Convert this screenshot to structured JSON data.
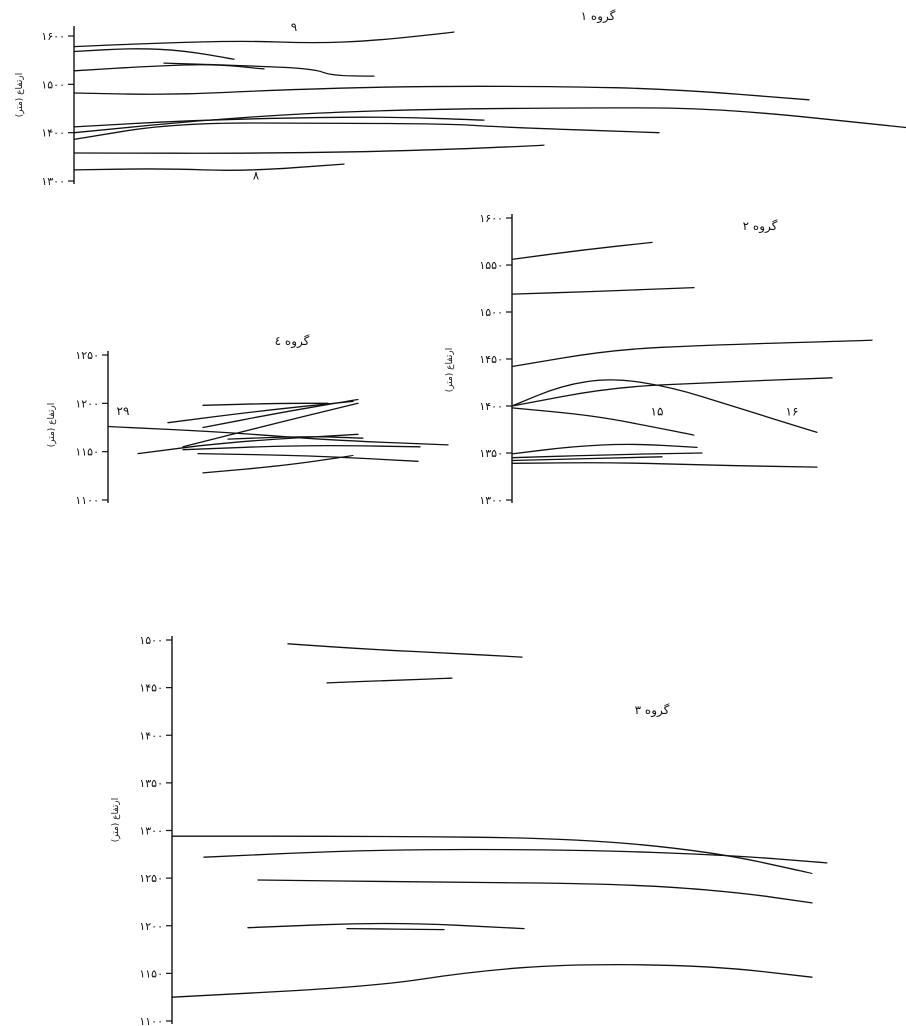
{
  "charts": [
    {
      "type": "line",
      "title": "گروه ۱",
      "ylabel": "ارتفاع (متر)",
      "ylim": [
        1300,
        1650
      ],
      "yticks": [
        {
          "v": 1300,
          "t": "۱۳۰۰"
        },
        {
          "v": 1400,
          "t": "۱۴۰۰"
        },
        {
          "v": 1500,
          "t": "۱۵۰۰"
        },
        {
          "v": 1600,
          "t": "۱۶۰۰"
        }
      ],
      "xlim": [
        0,
        835
      ],
      "series": [
        {
          "points": [
            [
              0,
              1578
            ],
            [
              80,
              1585
            ],
            [
              170,
              1590
            ],
            [
              240,
              1585
            ],
            [
              300,
              1590
            ],
            [
              380,
              1608
            ]
          ]
        },
        {
          "points": [
            [
              0,
              1568
            ],
            [
              60,
              1575
            ],
            [
              110,
              1570
            ],
            [
              160,
              1552
            ]
          ]
        },
        {
          "points": [
            [
              0,
              1528
            ],
            [
              80,
              1538
            ],
            [
              140,
              1542
            ],
            [
              190,
              1532
            ]
          ]
        },
        {
          "points": [
            [
              90,
              1544
            ],
            [
              180,
              1538
            ],
            [
              240,
              1532
            ],
            [
              258,
              1518
            ],
            [
              300,
              1517
            ]
          ]
        },
        {
          "points": [
            [
              0,
              1482
            ],
            [
              100,
              1478
            ],
            [
              200,
              1488
            ],
            [
              330,
              1496
            ],
            [
              480,
              1496
            ],
            [
              600,
              1490
            ],
            [
              735,
              1468
            ]
          ]
        },
        {
          "points": [
            [
              0,
              1400
            ],
            [
              150,
              1430
            ],
            [
              300,
              1447
            ],
            [
              520,
              1452
            ],
            [
              650,
              1450
            ],
            [
              835,
              1410
            ]
          ]
        },
        {
          "points": [
            [
              0,
              1412
            ],
            [
              120,
              1426
            ],
            [
              250,
              1432
            ],
            [
              330,
              1432
            ],
            [
              410,
              1426
            ]
          ]
        },
        {
          "points": [
            [
              0,
              1386
            ],
            [
              100,
              1420
            ],
            [
              250,
              1420
            ],
            [
              380,
              1418
            ],
            [
              420,
              1412
            ],
            [
              585,
              1400
            ]
          ]
        },
        {
          "points": [
            [
              0,
              1358
            ],
            [
              200,
              1357
            ],
            [
              360,
              1364
            ],
            [
              470,
              1374
            ]
          ]
        },
        {
          "points": [
            [
              0,
              1323
            ],
            [
              90,
              1326
            ],
            [
              170,
              1320
            ],
            [
              270,
              1335
            ]
          ]
        }
      ],
      "annotations": [
        {
          "text": "۹",
          "x": 220,
          "y": 1610
        },
        {
          "text": "۸",
          "x": 182,
          "y": 1303
        }
      ]
    },
    {
      "type": "line",
      "title": "گروه ۲",
      "ylabel": "ارتفاع (متر)",
      "ylim": [
        1300,
        1600
      ],
      "yticks": [
        {
          "v": 1300,
          "t": "۱۳۰۰"
        },
        {
          "v": 1350,
          "t": "۱۳۵۰"
        },
        {
          "v": 1400,
          "t": "۱۴۰۰"
        },
        {
          "v": 1450,
          "t": "۱۴۵۰"
        },
        {
          "v": 1500,
          "t": "۱۵۰۰"
        },
        {
          "v": 1550,
          "t": "۱۵۵۰"
        },
        {
          "v": 1600,
          "t": "۱۶۰۰"
        }
      ],
      "xlim": [
        0,
        360
      ],
      "series": [
        {
          "points": [
            [
              0,
              1556
            ],
            [
              70,
              1566
            ],
            [
              140,
              1574
            ]
          ]
        },
        {
          "points": [
            [
              0,
              1519
            ],
            [
              90,
              1522
            ],
            [
              182,
              1526
            ]
          ]
        },
        {
          "points": [
            [
              0,
              1442
            ],
            [
              100,
              1460
            ],
            [
              200,
              1465
            ],
            [
              360,
              1470
            ]
          ]
        },
        {
          "points": [
            [
              0,
              1400
            ],
            [
              100,
              1420
            ],
            [
              200,
              1425
            ],
            [
              320,
              1430
            ]
          ]
        },
        {
          "points": [
            [
              0,
              1400
            ],
            [
              50,
              1422
            ],
            [
              100,
              1430
            ],
            [
              160,
              1420
            ],
            [
              220,
              1400
            ],
            [
              305,
              1372
            ]
          ]
        },
        {
          "points": [
            [
              0,
              1398
            ],
            [
              80,
              1390
            ],
            [
              140,
              1378
            ],
            [
              182,
              1369
            ]
          ]
        },
        {
          "points": [
            [
              0,
              1349
            ],
            [
              60,
              1357
            ],
            [
              120,
              1360
            ],
            [
              185,
              1356
            ]
          ]
        },
        {
          "points": [
            [
              0,
              1345
            ],
            [
              90,
              1348
            ],
            [
              190,
              1350
            ]
          ]
        },
        {
          "points": [
            [
              0,
              1342
            ],
            [
              150,
              1346
            ]
          ]
        },
        {
          "points": [
            [
              0,
              1339
            ],
            [
              100,
              1340
            ],
            [
              200,
              1337
            ],
            [
              305,
              1335
            ]
          ]
        }
      ],
      "annotations": [
        {
          "text": "۱۵",
          "x": 145,
          "y": 1390
        },
        {
          "text": "۱۶",
          "x": 280,
          "y": 1390
        }
      ]
    },
    {
      "type": "line",
      "title": "گروه ۳",
      "ylabel": "ارتفاع (متر)",
      "ylim": [
        1100,
        1500
      ],
      "yticks": [
        {
          "v": 1100,
          "t": "۱۱۰۰"
        },
        {
          "v": 1150,
          "t": "۱۱۵۰"
        },
        {
          "v": 1200,
          "t": "۱۲۰۰"
        },
        {
          "v": 1250,
          "t": "۱۲۵۰"
        },
        {
          "v": 1300,
          "t": "۱۳۰۰"
        },
        {
          "v": 1350,
          "t": "۱۳۵۰"
        },
        {
          "v": 1400,
          "t": "۱۴۰۰"
        },
        {
          "v": 1450,
          "t": "۱۴۵۰"
        },
        {
          "v": 1500,
          "t": "۱۵۰۰"
        }
      ],
      "xlim": [
        0,
        660
      ],
      "series": [
        {
          "points": [
            [
              116,
              1496
            ],
            [
              200,
              1490
            ],
            [
              280,
              1486
            ],
            [
              350,
              1482
            ]
          ]
        },
        {
          "points": [
            [
              155,
              1455
            ],
            [
              230,
              1458
            ],
            [
              280,
              1460
            ]
          ]
        },
        {
          "points": [
            [
              0,
              1294
            ],
            [
              200,
              1294
            ],
            [
              400,
              1292
            ],
            [
              540,
              1278
            ],
            [
              640,
              1255
            ]
          ]
        },
        {
          "points": [
            [
              32,
              1272
            ],
            [
              200,
              1280
            ],
            [
              400,
              1280
            ],
            [
              560,
              1274
            ],
            [
              655,
              1266
            ]
          ]
        },
        {
          "points": [
            [
              86,
              1248
            ],
            [
              250,
              1246
            ],
            [
              450,
              1244
            ],
            [
              560,
              1236
            ],
            [
              640,
              1224
            ]
          ]
        },
        {
          "points": [
            [
              76,
              1198
            ],
            [
              220,
              1204
            ],
            [
              352,
              1197
            ]
          ]
        },
        {
          "points": [
            [
              175,
              1197
            ],
            [
              272,
              1196
            ]
          ]
        },
        {
          "points": [
            [
              0,
              1125
            ],
            [
              200,
              1136
            ],
            [
              300,
              1152
            ],
            [
              400,
              1160
            ],
            [
              540,
              1158
            ],
            [
              640,
              1146
            ]
          ]
        }
      ],
      "annotations": []
    },
    {
      "type": "line",
      "title": "گروه ٤",
      "ylabel": "ارتفاع (متر)",
      "ylim": [
        1100,
        1250
      ],
      "yticks": [
        {
          "v": 1100,
          "t": "۱۱۰۰"
        },
        {
          "v": 1150,
          "t": "۱۱۵۰"
        },
        {
          "v": 1200,
          "t": "۱۲۰۰"
        },
        {
          "v": 1250,
          "t": "۱۲۵۰"
        }
      ],
      "xlim": [
        0,
        340
      ],
      "series": [
        {
          "points": [
            [
              0,
              1176
            ],
            [
              120,
              1170
            ],
            [
              220,
              1162
            ],
            [
              340,
              1157
            ]
          ]
        },
        {
          "points": [
            [
              60,
              1180
            ],
            [
              150,
              1192
            ],
            [
              245,
              1202
            ]
          ]
        },
        {
          "points": [
            [
              95,
              1198
            ],
            [
              170,
              1200
            ],
            [
              220,
              1200
            ]
          ]
        },
        {
          "points": [
            [
              95,
              1175
            ],
            [
              170,
              1190
            ],
            [
              250,
              1204
            ]
          ]
        },
        {
          "points": [
            [
              75,
              1155
            ],
            [
              170,
              1180
            ],
            [
              250,
              1200
            ]
          ]
        },
        {
          "points": [
            [
              30,
              1148
            ],
            [
              120,
              1160
            ],
            [
              250,
              1168
            ]
          ]
        },
        {
          "points": [
            [
              120,
              1163
            ],
            [
              200,
              1166
            ],
            [
              255,
              1164
            ]
          ]
        },
        {
          "points": [
            [
              75,
              1152
            ],
            [
              200,
              1157
            ],
            [
              312,
              1155
            ]
          ]
        },
        {
          "points": [
            [
              90,
              1148
            ],
            [
              200,
              1146
            ],
            [
              310,
              1140
            ]
          ]
        },
        {
          "points": [
            [
              95,
              1128
            ],
            [
              180,
              1136
            ],
            [
              245,
              1146
            ]
          ]
        }
      ],
      "annotations": [
        {
          "text": "۲۹",
          "x": 15,
          "y": 1188
        }
      ]
    }
  ]
}
